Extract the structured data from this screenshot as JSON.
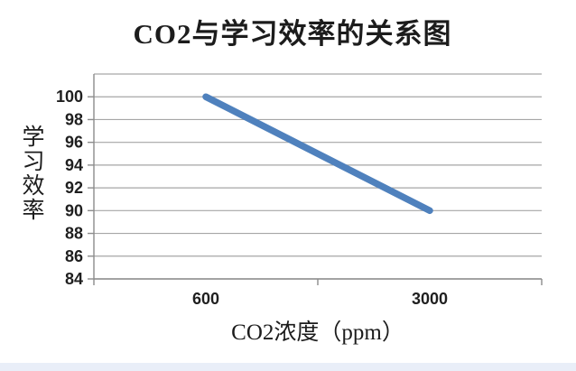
{
  "page": {
    "background": "#ffffff",
    "footer_strip_color": "#e9eef8"
  },
  "chart_data": {
    "type": "line",
    "title": "CO2与学习效率的关系图",
    "xlabel": "CO2浓度（ppm）",
    "ylabel": "学习效率",
    "categories": [
      "600",
      "3000"
    ],
    "series": [
      {
        "name": "学习效率",
        "values": [
          100,
          90
        ]
      }
    ],
    "ylim": [
      84,
      102
    ],
    "ytick_step": 2,
    "ytick_labels": [
      "84",
      "86",
      "88",
      "90",
      "92",
      "94",
      "96",
      "98",
      "100"
    ],
    "grid": true,
    "legend": "none",
    "colors": {
      "line": "#4f81bd",
      "grid": "#a6a6a6",
      "axis": "#8c8c8c",
      "text": "#1f1f1f"
    }
  }
}
